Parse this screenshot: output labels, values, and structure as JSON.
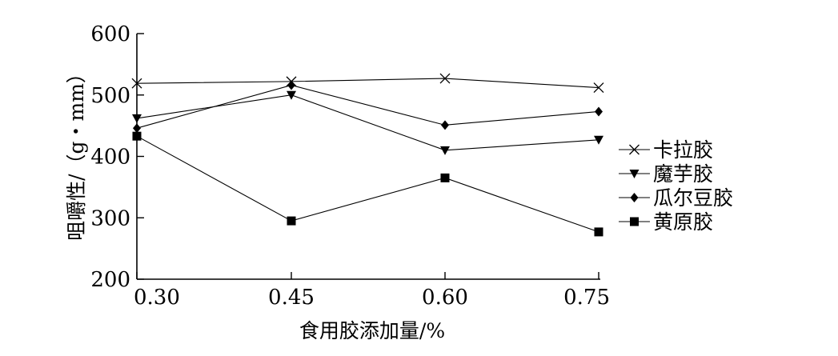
{
  "chart_data": {
    "type": "line",
    "xlabel": "食用胶添加量/%",
    "ylabel": "咀嚼性/（g・mm）",
    "categories": [
      "0.30",
      "0.45",
      "0.60",
      "0.75"
    ],
    "ylim": [
      200,
      600
    ],
    "yticks": [
      200,
      300,
      400,
      500,
      600
    ],
    "grid": false,
    "legend_position": "right",
    "series": [
      {
        "name": "卡拉胶",
        "marker": "x",
        "values": [
          519,
          522,
          527,
          512
        ]
      },
      {
        "name": "魔芋胶",
        "marker": "triangle-down",
        "values": [
          462,
          500,
          410,
          427
        ]
      },
      {
        "name": "瓜尔豆胶",
        "marker": "diamond",
        "values": [
          446,
          516,
          451,
          473
        ]
      },
      {
        "name": "黄原胶",
        "marker": "square",
        "values": [
          433,
          295,
          365,
          277
        ]
      }
    ]
  }
}
